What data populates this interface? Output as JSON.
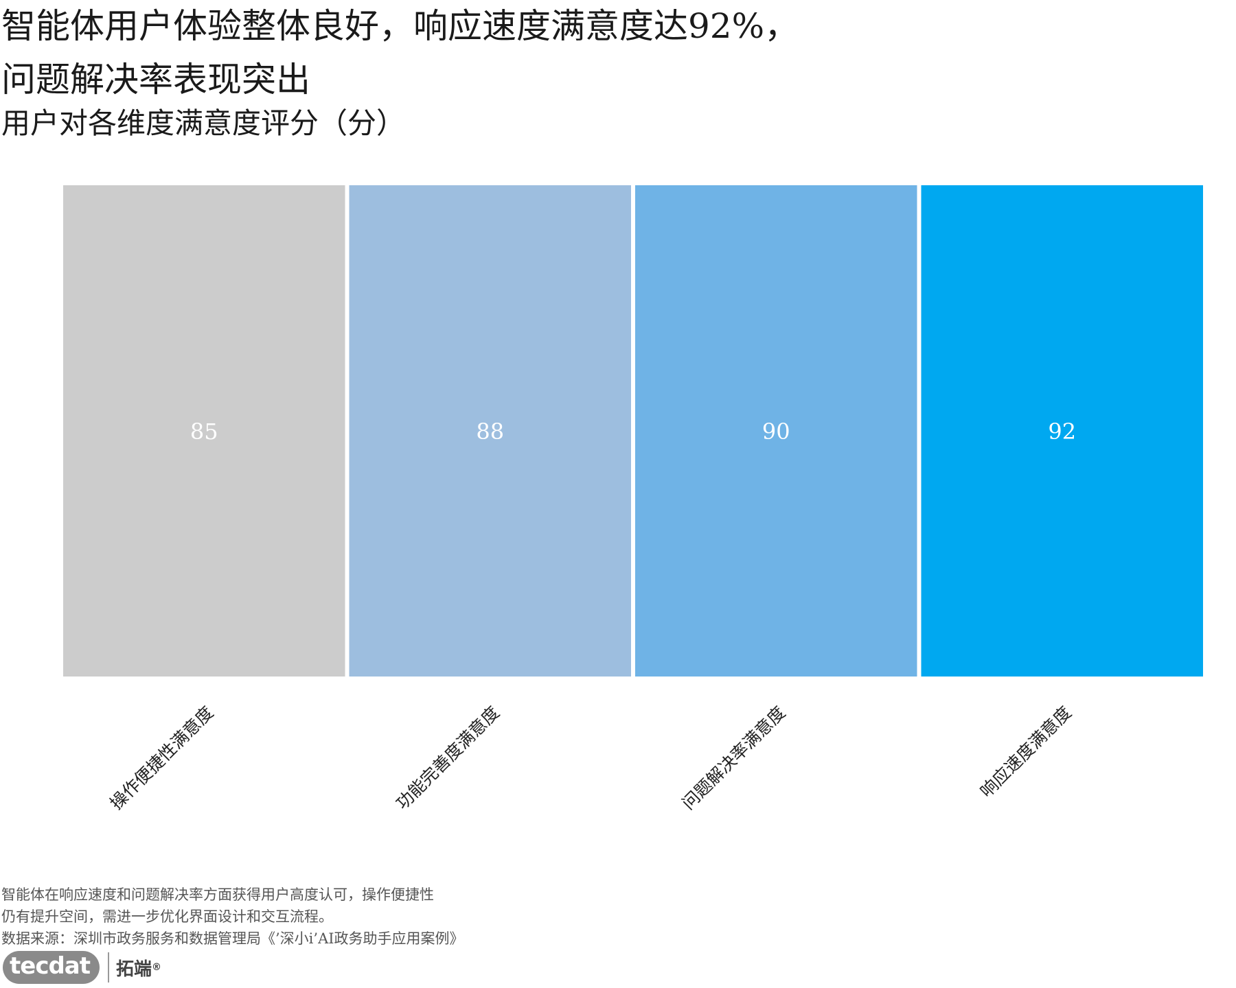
{
  "headline": {
    "line1": "智能体用户体验整体良好，响应速度满意度达92%，",
    "line2": "问题解决率表现突出"
  },
  "subtitle": "用户对各维度满意度评分（分）",
  "chart_data": {
    "type": "bar",
    "title": "用户对各维度满意度评分（分）",
    "xlabel": "",
    "ylabel": "",
    "categories": [
      "操作便捷性满意度",
      "功能完善度满意度",
      "问题解决率满意度",
      "响应速度满意度"
    ],
    "values": [
      85,
      88,
      90,
      92
    ],
    "colors": [
      "#cccccc",
      "#9dbedf",
      "#6fb3e6",
      "#00a8f0"
    ],
    "value_label_color": "#ffffff",
    "grid": false,
    "legend": "none"
  },
  "footnote": {
    "line1": "智能体在响应速度和问题解决率方面获得用户高度认可，操作便捷性",
    "line2": "仍有提升空间，需进一步优化界面设计和交互流程。",
    "source": "数据来源：深圳市政务服务和数据管理局《’深小i’AI政务助手应用案例》"
  },
  "logo": {
    "brand": "tecdat",
    "cn": "拓端",
    "mark": "®"
  }
}
